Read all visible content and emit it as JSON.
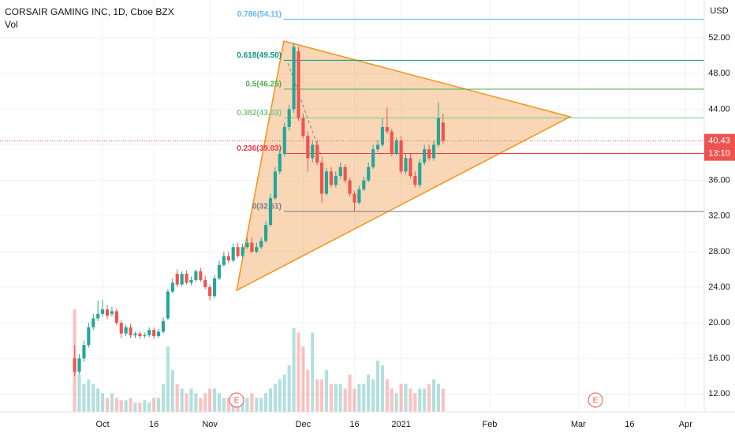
{
  "chart_data": {
    "type": "candlestick",
    "title": "CORSAIR GAMING INC, 1D, Cboe BZX",
    "volume_label": "Vol",
    "currency": "USD",
    "up_color": "#26a69a",
    "down_color": "#ef5350",
    "open": [
      16,
      14.5,
      16,
      17.5,
      19.5,
      20.5,
      21,
      21.5,
      21,
      21.3,
      20,
      18.8,
      19.5,
      18.6,
      18.8,
      18.5,
      18.6,
      19.2,
      18.5,
      19,
      20.5,
      23.5,
      25.5,
      24.3,
      25.5,
      24.5,
      24.8,
      25.8,
      24.8,
      24,
      23,
      25,
      26.5,
      27.5,
      27,
      28.5,
      27.5,
      28.5,
      29,
      28,
      28.5,
      29.2,
      31,
      34,
      37,
      39,
      42,
      44,
      50.5,
      43,
      41,
      38.5,
      40,
      38,
      34.5,
      37,
      35.5,
      36.5,
      37.5,
      36,
      34.5,
      33.5,
      35,
      36,
      37.5,
      39.5,
      40,
      42,
      41.5,
      39,
      40.5,
      37,
      38.5,
      36.5,
      35.5,
      38,
      39.5,
      38.5,
      40,
      42.5
    ],
    "high": [
      17.5,
      16.5,
      18,
      20,
      21,
      22.5,
      22.6,
      22,
      21.8,
      21.6,
      20.3,
      19.8,
      19.9,
      19,
      19,
      18.9,
      19.5,
      19.5,
      19.3,
      20.6,
      23.8,
      25,
      26,
      25.8,
      25.9,
      25.2,
      26,
      26.2,
      25.3,
      24.3,
      25.4,
      27,
      28,
      28,
      28.9,
      29,
      28.9,
      29.5,
      29.6,
      29,
      29.6,
      31.4,
      34.5,
      37.5,
      39.5,
      42.5,
      44.5,
      51.5,
      51,
      43.5,
      41.5,
      40.5,
      40.5,
      38.3,
      37.4,
      37.5,
      37,
      38,
      37.8,
      36.3,
      34.8,
      35.4,
      36.4,
      38,
      40,
      40.5,
      43,
      44.2,
      41.8,
      40.8,
      41,
      39,
      39,
      37,
      38.4,
      40,
      40,
      40.5,
      44.8,
      43.5
    ],
    "low": [
      14,
      14.2,
      15.6,
      17.2,
      19.2,
      20.2,
      20.7,
      20.4,
      20.7,
      19.7,
      18.3,
      18.5,
      18.3,
      18.3,
      18.2,
      18.3,
      18.4,
      18.2,
      18.3,
      18.8,
      20.3,
      23.3,
      24,
      24.1,
      24.3,
      24.2,
      24.6,
      24.6,
      23.8,
      22.5,
      22.8,
      24.8,
      26.3,
      26.7,
      26.8,
      27.3,
      27.3,
      28.3,
      27.8,
      27.8,
      28.3,
      29,
      30.8,
      33.8,
      36.7,
      38.7,
      41.6,
      43.6,
      42.7,
      40.7,
      37,
      38,
      37.7,
      33.5,
      34.3,
      35.2,
      35.2,
      36.2,
      35.7,
      34.2,
      32.5,
      33.3,
      34.8,
      35.8,
      37.3,
      39.2,
      39.8,
      41.2,
      38.7,
      38.8,
      36.7,
      36.7,
      36.2,
      35.2,
      35.2,
      37.7,
      38.2,
      38.2,
      39.7,
      40.1
    ],
    "close": [
      14.5,
      16,
      17.5,
      19.5,
      20.5,
      21,
      21.5,
      20.8,
      21.3,
      20,
      18.8,
      19.5,
      18.6,
      18.8,
      18.5,
      18.6,
      19.2,
      18.5,
      19,
      20.2,
      23.5,
      24.5,
      24.3,
      25.5,
      24.5,
      24.8,
      25.8,
      24.8,
      24,
      23,
      25,
      26.5,
      27.5,
      27,
      28.5,
      27.5,
      28.5,
      29,
      28,
      28.5,
      29.2,
      31,
      34,
      37,
      39,
      42,
      44,
      51,
      43,
      41,
      38.5,
      40,
      38,
      34.5,
      37,
      35.5,
      36.5,
      37.5,
      36,
      34.5,
      33.5,
      35,
      36,
      37.5,
      39.5,
      40,
      42,
      41.5,
      39,
      40.5,
      37,
      38.5,
      36.5,
      35.5,
      38,
      39.5,
      38.5,
      40,
      43,
      40.43
    ],
    "volume": [
      22,
      8,
      6,
      7,
      6,
      5,
      4,
      3,
      4,
      3,
      2.5,
      2.5,
      3,
      2,
      2,
      2.5,
      2,
      3,
      3,
      6,
      14,
      9,
      6,
      5,
      4,
      5,
      4,
      3,
      4,
      5,
      5,
      4,
      3,
      3,
      4,
      3,
      3,
      3,
      4,
      3,
      3,
      4,
      5,
      6,
      7,
      8,
      10,
      18,
      17,
      14,
      9,
      17,
      7,
      7,
      9,
      6,
      6,
      6,
      5,
      8,
      5,
      6,
      6,
      8,
      7,
      11,
      10,
      7,
      5,
      4,
      6,
      6,
      5,
      4,
      5,
      5,
      6,
      7,
      6,
      5
    ],
    "xlim": [
      -16,
      135
    ],
    "xticks": [
      {
        "value": 6,
        "label": "Oct"
      },
      {
        "value": 17,
        "label": "16"
      },
      {
        "value": 29,
        "label": "Nov"
      },
      {
        "value": 49,
        "label": "Dec"
      },
      {
        "value": 60,
        "label": "16"
      },
      {
        "value": 70,
        "label": "2021"
      },
      {
        "value": 89,
        "label": "Feb"
      },
      {
        "value": 108,
        "label": "Mar"
      },
      {
        "value": 119,
        "label": "16"
      },
      {
        "value": 131,
        "label": "Apr"
      }
    ],
    "ylim": [
      9.99,
      56.27
    ],
    "yticks": [
      {
        "value": 12,
        "label": "12.00"
      },
      {
        "value": 16,
        "label": "16.00"
      },
      {
        "value": 20,
        "label": "20.00"
      },
      {
        "value": 24,
        "label": "24.00"
      },
      {
        "value": 28,
        "label": "28.00"
      },
      {
        "value": 32,
        "label": "32.00"
      },
      {
        "value": 36,
        "label": "36.00"
      },
      {
        "value": 40,
        "label": "40.00"
      },
      {
        "value": 44,
        "label": "44.00"
      },
      {
        "value": 48,
        "label": "48.00"
      },
      {
        "value": 52,
        "label": "52.00"
      }
    ],
    "last_price": 40.43,
    "countdown": "13:10",
    "fib_levels": [
      {
        "label": "0.786(54.11)",
        "value": 54.11,
        "color": "#64b5f6"
      },
      {
        "label": "0.618(49.50)",
        "value": 49.5,
        "color": "#089981"
      },
      {
        "label": "0.5(46.25)",
        "value": 46.25,
        "color": "#4caf50"
      },
      {
        "label": "0.382(43.03)",
        "value": 43.03,
        "color": "#81c784"
      },
      {
        "label": "0.236(39.03)",
        "value": 39.03,
        "color": "#f23645"
      },
      {
        "label": "0(32.51)",
        "value": 32.51,
        "color": "#787b86"
      }
    ],
    "earnings_markers": [
      "E",
      "E"
    ]
  }
}
